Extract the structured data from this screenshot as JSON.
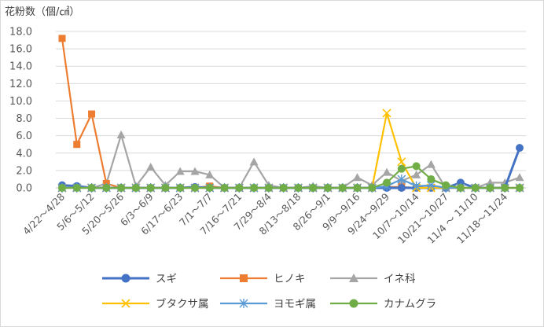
{
  "chart_data": {
    "type": "line",
    "ylabel": "花粉数（個/㎠）",
    "ylim": [
      0,
      18
    ],
    "yticks": [
      "0.0",
      "2.0",
      "4.0",
      "6.0",
      "8.0",
      "10.0",
      "12.0",
      "14.0",
      "16.0",
      "18.0"
    ],
    "ytick_values": [
      0,
      2,
      4,
      6,
      8,
      10,
      12,
      14,
      16,
      18
    ],
    "x_tick_labels": [
      "4/22～4/28",
      "5/6～5/12",
      "5/20～5/26",
      "6/3～6/9",
      "6/17～6/23",
      "7/1～7/7",
      "7/16～7/21",
      "7/29～8/4",
      "8/13～8/18",
      "8/26～9/1",
      "9/9～9/16",
      "9/24～9/29",
      "10/7～10/14",
      "10/21～10/27",
      "11/4 ～ 11/10",
      "11/18～11/24"
    ],
    "grid": true,
    "legend_position": "bottom",
    "series": [
      {
        "name": "スギ",
        "color": "#4472C4",
        "marker": "circle",
        "values": [
          0.3,
          0.2,
          0,
          0,
          0,
          0,
          0,
          0,
          0,
          0.1,
          0,
          0,
          0,
          0,
          0,
          0,
          0,
          0,
          0,
          0,
          0,
          0,
          0,
          0,
          0,
          0,
          0,
          0.6,
          0,
          0,
          0,
          4.6
        ]
      },
      {
        "name": "ヒノキ",
        "color": "#ED7D31",
        "marker": "square",
        "values": [
          17.2,
          5.0,
          8.5,
          0.5,
          0,
          0,
          0,
          0,
          0,
          0,
          0.2,
          0,
          0,
          0,
          0,
          0,
          0,
          0,
          0,
          0,
          0,
          0,
          0.1,
          0.1,
          0,
          0,
          0,
          0,
          0,
          0,
          0,
          0
        ]
      },
      {
        "name": "イネ科",
        "color": "#A5A5A5",
        "marker": "triangle",
        "values": [
          0,
          0,
          0,
          0.5,
          6.1,
          0.2,
          2.4,
          0.3,
          1.9,
          1.9,
          1.5,
          0,
          0,
          3.0,
          0.3,
          0,
          0,
          0.2,
          0,
          0,
          1.2,
          0.3,
          1.8,
          0.8,
          1.5,
          2.7,
          0,
          0,
          0,
          0.6,
          0.6,
          1.2
        ]
      },
      {
        "name": "ブタクサ属",
        "color": "#FFC000",
        "marker": "x",
        "values": [
          0,
          0,
          0,
          0,
          0,
          0,
          0,
          0,
          0,
          0,
          0,
          0,
          0,
          0,
          0,
          0,
          0,
          0,
          0,
          0,
          0,
          0,
          8.6,
          3.0,
          0,
          0,
          0,
          0,
          0,
          0,
          0,
          0
        ]
      },
      {
        "name": "ヨモギ属",
        "color": "#5B9BD5",
        "marker": "star",
        "values": [
          0,
          0,
          0,
          0,
          0,
          0,
          0,
          0,
          0,
          0,
          0,
          0,
          0,
          0,
          0,
          0,
          0,
          0,
          0,
          0,
          0,
          0,
          0.2,
          1.0,
          0.2,
          0.3,
          0,
          0,
          0,
          0,
          0,
          0
        ]
      },
      {
        "name": "カナムグラ",
        "color": "#70AD47",
        "marker": "circle",
        "values": [
          0,
          0,
          0,
          0,
          0,
          0,
          0,
          0,
          0,
          0,
          0,
          0,
          0,
          0,
          0,
          0,
          0,
          0,
          0,
          0,
          0,
          0,
          0.6,
          2.2,
          2.5,
          1.0,
          0.3,
          0,
          0,
          0,
          0,
          0
        ]
      }
    ]
  }
}
